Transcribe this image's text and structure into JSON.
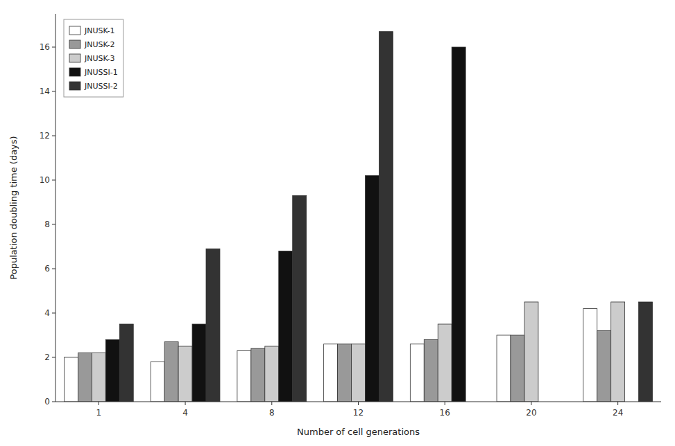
{
  "chart_data": {
    "type": "bar",
    "xlabel": "Number of cell generations",
    "ylabel": "Population doubling time (days)",
    "categories": [
      "1",
      "4",
      "8",
      "12",
      "16",
      "20",
      "24"
    ],
    "series": [
      {
        "name": "JNUSK-1",
        "color": "#ffffff",
        "values": [
          2.0,
          1.8,
          2.3,
          2.6,
          2.6,
          3.0,
          4.2
        ]
      },
      {
        "name": "JNUSK-2",
        "color": "#999999",
        "values": [
          2.2,
          2.7,
          2.4,
          2.6,
          2.8,
          3.0,
          3.2
        ]
      },
      {
        "name": "JNUSK-3",
        "color": "#cccccc",
        "values": [
          2.2,
          2.5,
          2.5,
          2.6,
          3.5,
          4.5,
          4.5
        ]
      },
      {
        "name": "JNUSSI-1",
        "color": "#111111",
        "values": [
          2.8,
          3.5,
          6.8,
          10.2,
          16.0,
          0.0,
          0.0
        ]
      },
      {
        "name": "JNUSSI-2",
        "color": "#333333",
        "values": [
          3.5,
          6.9,
          9.3,
          16.7,
          0.0,
          0.0,
          4.5
        ]
      }
    ],
    "ylim": [
      0,
      17.5
    ],
    "yticks": [
      0,
      2,
      4,
      6,
      8,
      10,
      12,
      14,
      16
    ],
    "grid": false,
    "legend": "upper left"
  }
}
